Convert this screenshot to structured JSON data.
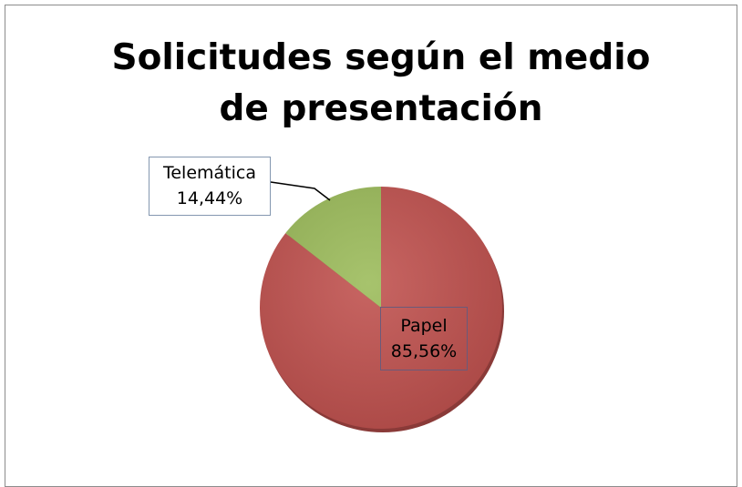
{
  "chart_data": {
    "type": "pie",
    "title": "Solicitudes según el medio de presentación",
    "categories": [
      "Papel",
      "Telemática"
    ],
    "values": [
      85.56,
      14.44
    ],
    "value_labels": [
      "85,56%",
      "14,44%"
    ],
    "colors": [
      "#c0504d",
      "#9bbb59"
    ]
  }
}
